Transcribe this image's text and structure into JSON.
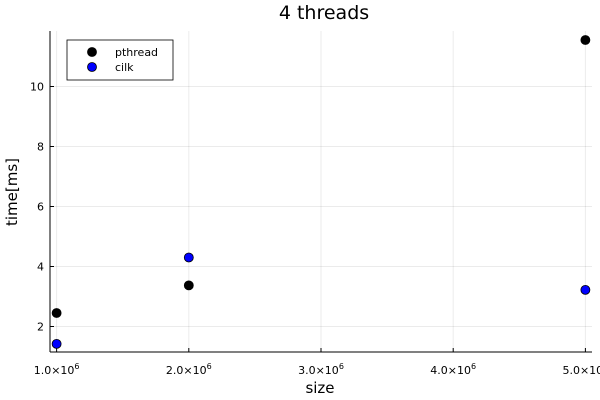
{
  "chart_data": {
    "type": "scatter",
    "title": "4 threads",
    "xlabel": "size",
    "ylabel": "time[ms]",
    "xlim": [
      950000,
      5050000
    ],
    "ylim": [
      1.15,
      11.85
    ],
    "x_ticks": [
      {
        "value": 1000000,
        "mantissa": "1.0",
        "exp": "6"
      },
      {
        "value": 2000000,
        "mantissa": "2.0",
        "exp": "6"
      },
      {
        "value": 3000000,
        "mantissa": "3.0",
        "exp": "6"
      },
      {
        "value": 4000000,
        "mantissa": "4.0",
        "exp": "6"
      },
      {
        "value": 5000000,
        "mantissa": "5.0",
        "exp": "6"
      }
    ],
    "y_ticks": [
      2,
      4,
      6,
      8,
      10
    ],
    "grid": true,
    "legend_position": "top-left",
    "series": [
      {
        "name": "pthread",
        "color": "#000000",
        "points": [
          {
            "x": 1000000,
            "y": 2.45
          },
          {
            "x": 2000000,
            "y": 3.37
          },
          {
            "x": 5000000,
            "y": 11.55
          }
        ]
      },
      {
        "name": "cilk",
        "color": "#0000ff",
        "points": [
          {
            "x": 1000000,
            "y": 1.42
          },
          {
            "x": 2000000,
            "y": 4.3
          },
          {
            "x": 5000000,
            "y": 3.22
          }
        ]
      }
    ]
  }
}
